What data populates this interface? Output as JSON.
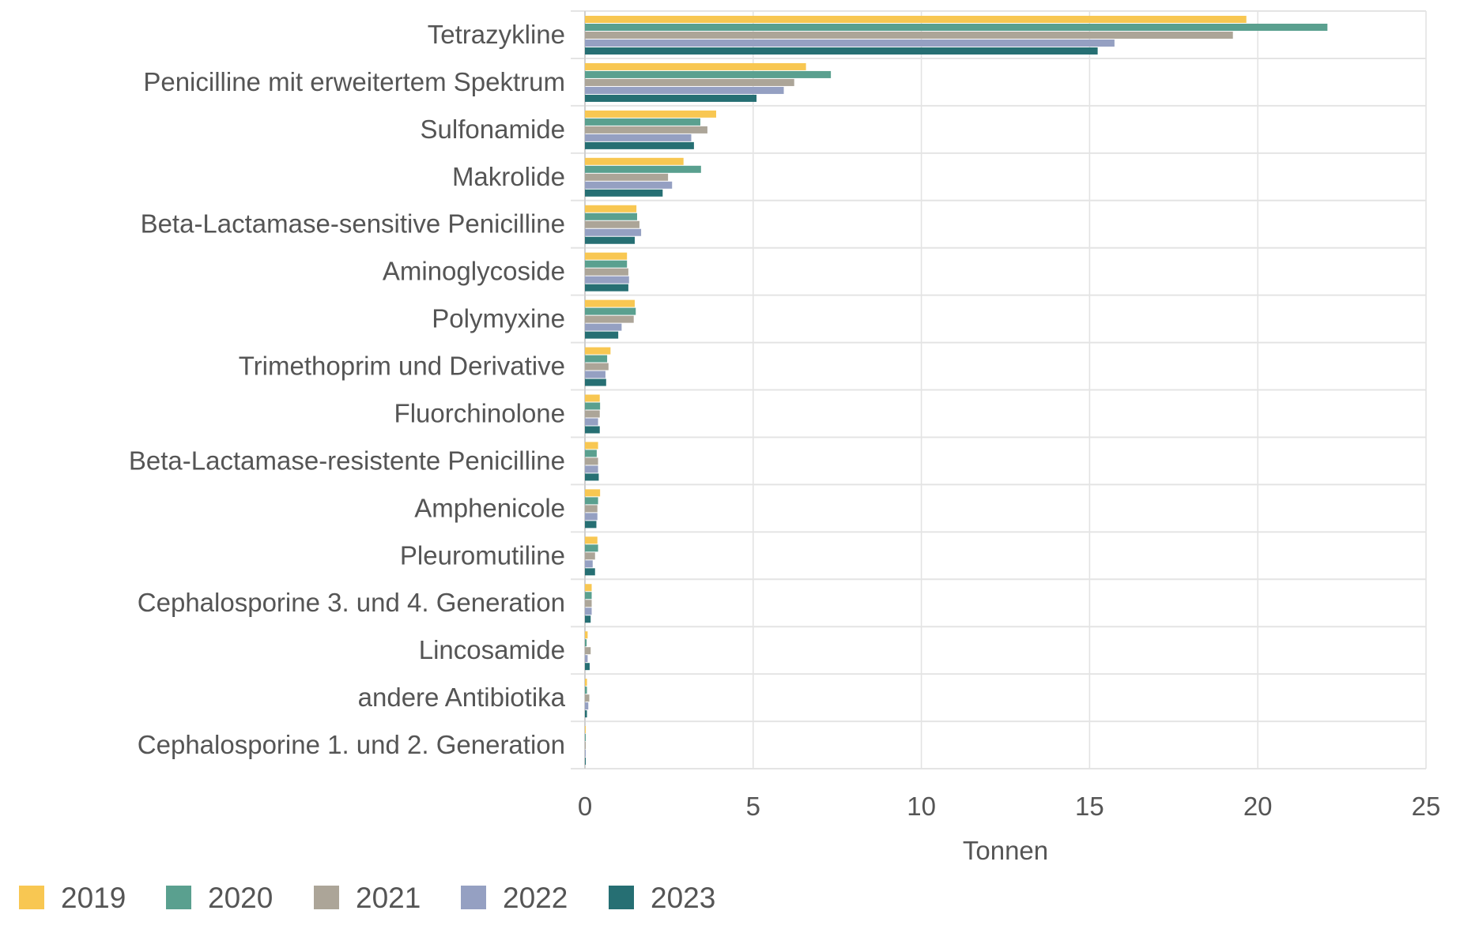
{
  "chart_data": {
    "type": "bar",
    "orientation": "horizontal",
    "title": "",
    "xlabel": "Tonnen",
    "ylabel": "",
    "xlim": [
      0,
      25
    ],
    "xticks": [
      0,
      5,
      10,
      15,
      20,
      25
    ],
    "grid": true,
    "legend_position": "bottom-left",
    "categories": [
      "Tetrazykline",
      "Penicilline mit erweitertem Spektrum",
      "Sulfonamide",
      "Makrolide",
      "Beta-Lactamase-sensitive Penicilline",
      "Aminoglycoside",
      "Polymyxine",
      "Trimethoprim und Derivative",
      "Fluorchinolone",
      "Beta-Lactamase-resistente Penicilline",
      "Amphenicole",
      "Pleuromutiline",
      "Cephalosporine 3. und 4. Generation",
      "Lincosamide",
      "andere Antibiotika",
      "Cephalosporine 1. und 2. Generation"
    ],
    "series": [
      {
        "name": "2019",
        "color": "#f8c752",
        "values": [
          19.66,
          6.57,
          3.9,
          2.93,
          1.53,
          1.25,
          1.48,
          0.76,
          0.44,
          0.39,
          0.45,
          0.37,
          0.2,
          0.08,
          0.06,
          0.02
        ]
      },
      {
        "name": "2020",
        "color": "#5aa08f",
        "values": [
          22.07,
          7.31,
          3.43,
          3.45,
          1.55,
          1.25,
          1.51,
          0.66,
          0.45,
          0.35,
          0.39,
          0.39,
          0.2,
          0.05,
          0.06,
          0.02
        ]
      },
      {
        "name": "2021",
        "color": "#aca598",
        "values": [
          19.26,
          6.22,
          3.64,
          2.47,
          1.62,
          1.29,
          1.45,
          0.7,
          0.44,
          0.39,
          0.37,
          0.3,
          0.2,
          0.17,
          0.13,
          0.02
        ]
      },
      {
        "name": "2022",
        "color": "#95a0c2",
        "values": [
          15.74,
          5.91,
          3.16,
          2.59,
          1.67,
          1.31,
          1.09,
          0.61,
          0.39,
          0.39,
          0.37,
          0.23,
          0.2,
          0.08,
          0.1,
          0.02
        ]
      },
      {
        "name": "2023",
        "color": "#266f73",
        "values": [
          15.24,
          5.1,
          3.24,
          2.31,
          1.48,
          1.29,
          0.99,
          0.63,
          0.44,
          0.41,
          0.34,
          0.3,
          0.17,
          0.14,
          0.06,
          0.02
        ]
      }
    ]
  }
}
